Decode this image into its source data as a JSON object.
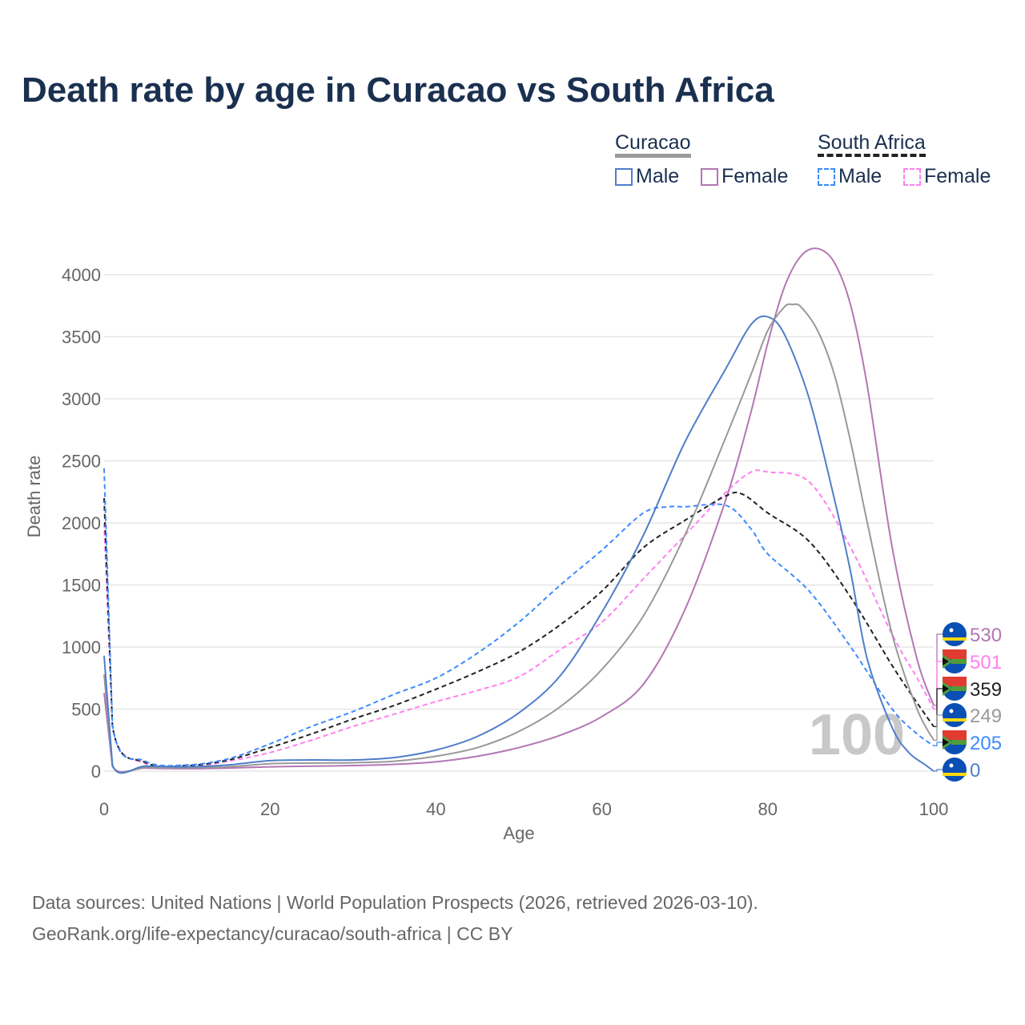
{
  "title": "Death rate by age in Curacao vs South Africa",
  "legend": {
    "groups": [
      {
        "name": "Curacao",
        "line_color": "#999999",
        "items": [
          {
            "label": "Male",
            "color": "#4f7ec9",
            "dashed": false
          },
          {
            "label": "Female",
            "color": "#b377b3",
            "dashed": false
          }
        ]
      },
      {
        "name": "South Africa",
        "line_color": "#222222",
        "items": [
          {
            "label": "Male",
            "color": "#3d8bfd",
            "dashed": true
          },
          {
            "label": "Female",
            "color": "#ff80f0",
            "dashed": true
          }
        ]
      }
    ]
  },
  "source": {
    "line1": "Data sources: United Nations | World Population Prospects (2026, retrieved 2026-03-10).",
    "line2": "GeoRank.org/life-expectancy/curacao/south-africa | CC BY"
  },
  "watermark": "100",
  "chart_data": {
    "type": "line",
    "xlabel": "Age",
    "ylabel": "Death rate",
    "xlim": [
      0,
      100
    ],
    "ylim": [
      0,
      4000
    ],
    "xticks": [
      0,
      20,
      40,
      60,
      80,
      100
    ],
    "yticks": [
      0,
      500,
      1000,
      1500,
      2000,
      2500,
      3000,
      3500,
      4000
    ],
    "grid": true,
    "series": [
      {
        "name": "Curacao Female",
        "color": "#b377b3",
        "dashed": false,
        "end_label": "530",
        "flag": "curacao",
        "x": [
          0,
          1,
          5,
          10,
          15,
          20,
          25,
          30,
          35,
          40,
          45,
          50,
          55,
          60,
          65,
          70,
          75,
          78,
          80,
          82,
          84,
          86,
          88,
          90,
          92,
          95,
          98,
          100
        ],
        "y": [
          630,
          40,
          25,
          20,
          25,
          35,
          40,
          45,
          55,
          75,
          120,
          190,
          290,
          440,
          700,
          1300,
          2200,
          2900,
          3450,
          3900,
          4150,
          4210,
          4100,
          3750,
          3100,
          1800,
          900,
          530
        ]
      },
      {
        "name": "South Africa Female",
        "color": "#ff80f0",
        "dashed": true,
        "end_label": "501",
        "flag": "south-africa",
        "x": [
          0,
          1,
          5,
          10,
          15,
          20,
          25,
          30,
          35,
          40,
          45,
          50,
          55,
          60,
          65,
          70,
          75,
          78,
          80,
          85,
          90,
          95,
          98,
          100
        ],
        "y": [
          2000,
          360,
          60,
          35,
          80,
          150,
          250,
          360,
          460,
          560,
          650,
          760,
          980,
          1200,
          1550,
          1900,
          2250,
          2410,
          2410,
          2330,
          1800,
          1100,
          750,
          501
        ]
      },
      {
        "name": "South Africa",
        "color": "#222222",
        "dashed": true,
        "end_label": "359",
        "flag": "south-africa",
        "x": [
          0,
          1,
          5,
          10,
          15,
          20,
          25,
          30,
          35,
          40,
          45,
          50,
          55,
          60,
          65,
          70,
          75,
          77,
          80,
          85,
          90,
          95,
          98,
          100
        ],
        "y": [
          2200,
          370,
          70,
          45,
          90,
          190,
          300,
          420,
          530,
          660,
          800,
          960,
          1180,
          1450,
          1800,
          2020,
          2220,
          2230,
          2080,
          1850,
          1400,
          850,
          550,
          359
        ]
      },
      {
        "name": "Curacao",
        "color": "#999999",
        "dashed": false,
        "end_label": "249",
        "flag": "curacao",
        "x": [
          0,
          1,
          5,
          10,
          15,
          20,
          25,
          30,
          35,
          40,
          45,
          50,
          55,
          60,
          65,
          70,
          75,
          78,
          80,
          82,
          83,
          84,
          86,
          88,
          90,
          92,
          95,
          98,
          100
        ],
        "y": [
          780,
          45,
          30,
          28,
          35,
          60,
          65,
          68,
          80,
          120,
          190,
          320,
          520,
          820,
          1250,
          1900,
          2700,
          3200,
          3550,
          3740,
          3760,
          3740,
          3550,
          3200,
          2650,
          2000,
          1100,
          500,
          249
        ]
      },
      {
        "name": "South Africa Male",
        "color": "#3d8bfd",
        "dashed": true,
        "end_label": "205",
        "flag": "south-africa",
        "x": [
          0,
          1,
          5,
          10,
          15,
          20,
          25,
          30,
          35,
          40,
          45,
          50,
          55,
          60,
          65,
          68,
          70,
          75,
          78,
          80,
          85,
          90,
          95,
          98,
          100
        ],
        "y": [
          2440,
          380,
          80,
          50,
          100,
          220,
          360,
          480,
          620,
          750,
          950,
          1200,
          1500,
          1780,
          2080,
          2130,
          2130,
          2140,
          1950,
          1750,
          1450,
          1000,
          500,
          300,
          205
        ]
      },
      {
        "name": "Curacao Male",
        "color": "#4f7ec9",
        "dashed": false,
        "end_label": "0",
        "flag": "curacao",
        "x": [
          0,
          1,
          5,
          10,
          15,
          20,
          25,
          30,
          35,
          40,
          45,
          50,
          55,
          60,
          65,
          70,
          75,
          78,
          80,
          82,
          85,
          88,
          90,
          92,
          95,
          97,
          99,
          100
        ],
        "y": [
          930,
          50,
          40,
          35,
          50,
          85,
          90,
          90,
          110,
          170,
          280,
          470,
          770,
          1280,
          1900,
          2650,
          3250,
          3600,
          3660,
          3520,
          3000,
          2200,
          1600,
          900,
          350,
          150,
          50,
          0
        ]
      }
    ]
  }
}
